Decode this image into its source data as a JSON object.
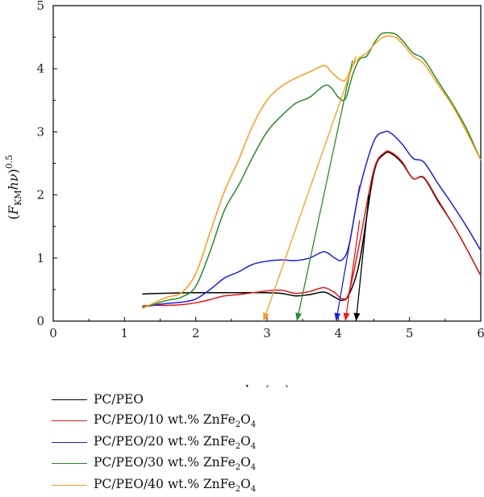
{
  "chart_data": {
    "type": "line",
    "title": "",
    "xlabel": "hν (ev)",
    "ylabel": "(F_KM hν)^0.5",
    "xlim": [
      0,
      6
    ],
    "ylim": [
      0,
      5
    ],
    "xticks": [
      0,
      1,
      2,
      3,
      4,
      5,
      6
    ],
    "yticks": [
      0,
      1,
      2,
      3,
      4,
      5
    ],
    "grid": false,
    "legend_position": "bottom",
    "series": [
      {
        "name": "PC/PEO",
        "color": "#000000",
        "x": [
          1.25,
          1.5,
          2.0,
          2.5,
          3.0,
          3.2,
          3.4,
          3.6,
          3.8,
          3.95,
          4.05,
          4.15,
          4.3,
          4.5,
          4.65,
          4.75,
          4.9,
          5.05,
          5.2,
          5.4,
          5.6,
          5.8,
          6.0
        ],
        "y": [
          0.43,
          0.44,
          0.45,
          0.45,
          0.45,
          0.44,
          0.4,
          0.42,
          0.46,
          0.38,
          0.33,
          0.42,
          0.95,
          2.35,
          2.65,
          2.65,
          2.5,
          2.26,
          2.27,
          1.9,
          1.55,
          1.15,
          0.72
        ],
        "tangent": {
          "from": [
            4.43,
            2.0
          ],
          "to": [
            4.25,
            0.0
          ],
          "intercept": 4.25
        }
      },
      {
        "name": "PC/PEO/10 wt.% ZnFe2O4",
        "color": "#e41a1c",
        "x": [
          1.25,
          1.4,
          1.6,
          1.8,
          2.0,
          2.2,
          2.4,
          2.6,
          2.8,
          3.0,
          3.2,
          3.4,
          3.6,
          3.8,
          3.95,
          4.05,
          4.15,
          4.3,
          4.5,
          4.65,
          4.75,
          4.9,
          5.05,
          5.2,
          5.4,
          5.6,
          5.8,
          6.0
        ],
        "y": [
          0.24,
          0.25,
          0.25,
          0.26,
          0.29,
          0.34,
          0.4,
          0.42,
          0.45,
          0.48,
          0.49,
          0.44,
          0.47,
          0.53,
          0.45,
          0.36,
          0.45,
          1.25,
          2.4,
          2.67,
          2.67,
          2.52,
          2.26,
          2.28,
          1.92,
          1.55,
          1.15,
          0.72
        ],
        "tangent": {
          "from": [
            4.3,
            1.6
          ],
          "to": [
            4.1,
            0.0
          ],
          "intercept": 4.1
        }
      },
      {
        "name": "PC/PEO/20 wt.% ZnFe2O4",
        "color": "#1f1fd9",
        "x": [
          1.25,
          1.4,
          1.6,
          1.8,
          2.0,
          2.2,
          2.4,
          2.6,
          2.8,
          3.0,
          3.2,
          3.4,
          3.6,
          3.8,
          3.95,
          4.05,
          4.15,
          4.3,
          4.5,
          4.65,
          4.75,
          4.9,
          5.05,
          5.2,
          5.4,
          5.6,
          5.8,
          6.0
        ],
        "y": [
          0.22,
          0.25,
          0.28,
          0.3,
          0.35,
          0.5,
          0.68,
          0.78,
          0.9,
          0.95,
          0.97,
          0.96,
          1.0,
          1.1,
          1.0,
          0.97,
          1.2,
          2.1,
          2.85,
          3.0,
          2.97,
          2.8,
          2.58,
          2.52,
          2.18,
          1.85,
          1.5,
          1.12
        ],
        "tangent": {
          "from": [
            4.3,
            2.15
          ],
          "to": [
            3.97,
            0.0
          ],
          "intercept": 3.97
        }
      },
      {
        "name": "PC/PEO/30 wt.% ZnFe2O4",
        "color": "#2a8a2a",
        "x": [
          1.25,
          1.4,
          1.6,
          1.8,
          2.0,
          2.2,
          2.4,
          2.6,
          2.8,
          3.0,
          3.2,
          3.4,
          3.6,
          3.8,
          3.9,
          4.0,
          4.1,
          4.2,
          4.3,
          4.4,
          4.5,
          4.6,
          4.7,
          4.8,
          4.9,
          5.05,
          5.2,
          5.4,
          5.6,
          5.8,
          6.0
        ],
        "y": [
          0.22,
          0.26,
          0.33,
          0.38,
          0.55,
          1.1,
          1.75,
          2.15,
          2.6,
          3.0,
          3.25,
          3.45,
          3.55,
          3.73,
          3.7,
          3.55,
          3.52,
          3.9,
          4.15,
          4.2,
          4.4,
          4.55,
          4.57,
          4.55,
          4.45,
          4.25,
          4.15,
          3.8,
          3.45,
          3.05,
          2.55
        ],
        "tangent": {
          "from": [
            4.2,
            4.13
          ],
          "to": [
            3.42,
            0.0
          ],
          "intercept": 3.42
        }
      },
      {
        "name": "PC/PEO/40 wt.% ZnFe2O4",
        "color": "#ff9a1f",
        "x": [
          1.25,
          1.4,
          1.6,
          1.8,
          2.0,
          2.2,
          2.4,
          2.6,
          2.8,
          3.0,
          3.2,
          3.4,
          3.6,
          3.8,
          3.9,
          4.0,
          4.1,
          4.2,
          4.3,
          4.4,
          4.5,
          4.6,
          4.7,
          4.8,
          4.9,
          5.05,
          5.2,
          5.4,
          5.6,
          5.8,
          6.0
        ],
        "y": [
          0.2,
          0.28,
          0.38,
          0.45,
          0.75,
          1.4,
          2.05,
          2.55,
          3.1,
          3.5,
          3.72,
          3.85,
          3.95,
          4.05,
          3.95,
          3.85,
          3.82,
          4.05,
          4.18,
          4.25,
          4.38,
          4.48,
          4.52,
          4.5,
          4.4,
          4.2,
          4.08,
          3.75,
          3.42,
          3.0,
          2.55
        ],
        "tangent": {
          "from": [
            4.25,
            4.2
          ],
          "to": [
            2.95,
            0.0
          ],
          "intercept": 2.95
        }
      }
    ]
  }
}
